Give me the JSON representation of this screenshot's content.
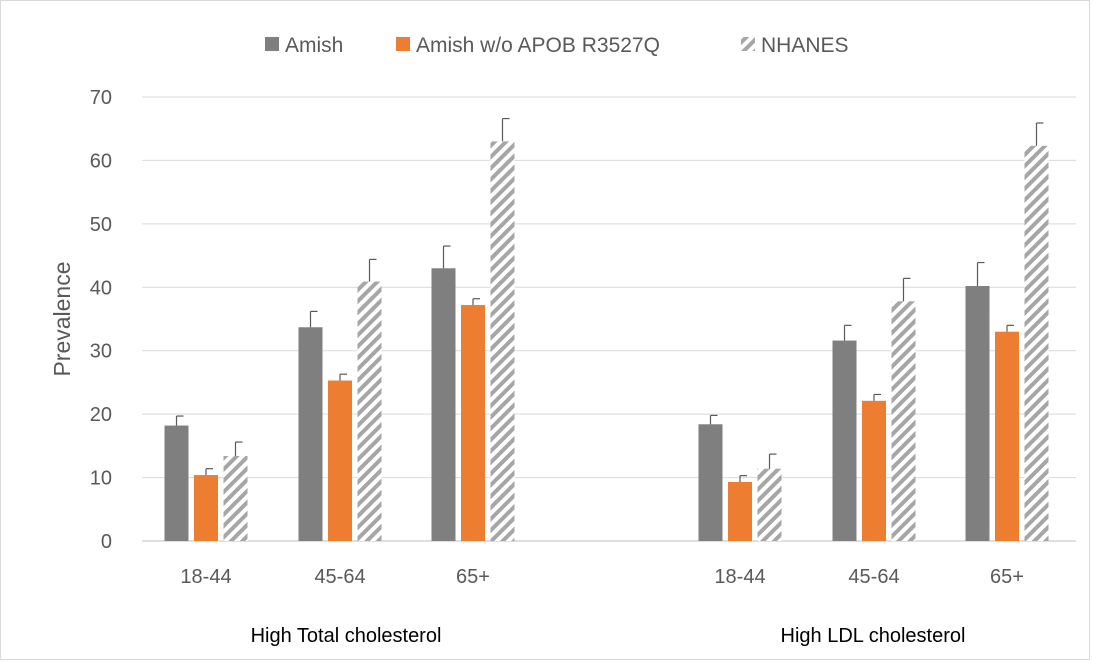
{
  "chart_data": {
    "type": "bar",
    "ylabel": "Prevalence",
    "ylim": [
      0,
      70
    ],
    "yticks": [
      0,
      10,
      20,
      30,
      40,
      50,
      60,
      70
    ],
    "grid": true,
    "legend_position": "top",
    "series": [
      {
        "name": "Amish",
        "color": "#7f7f7f",
        "pattern": "solid"
      },
      {
        "name": "Amish w/o APOB R3527Q",
        "color": "#ed7d31",
        "pattern": "solid"
      },
      {
        "name": "NHANES",
        "color": "#a6a6a6",
        "pattern": "diagonal-hatch"
      }
    ],
    "groups": [
      {
        "title": "High Total cholesterol",
        "categories": [
          "18-44",
          "45-64",
          "65+"
        ],
        "values": [
          [
            18.2,
            33.7,
            43.0
          ],
          [
            10.4,
            25.3,
            37.2
          ],
          [
            13.4,
            40.9,
            63.0
          ]
        ],
        "errors": [
          [
            1.5,
            2.5,
            3.5
          ],
          [
            1.0,
            1.0,
            1.0
          ],
          [
            2.2,
            3.5,
            3.6
          ]
        ]
      },
      {
        "title": "High LDL cholesterol",
        "categories": [
          "18-44",
          "45-64",
          "65+"
        ],
        "values": [
          [
            18.4,
            31.6,
            40.2
          ],
          [
            9.3,
            22.1,
            33.0
          ],
          [
            11.4,
            37.8,
            62.3
          ]
        ],
        "errors": [
          [
            1.4,
            2.4,
            3.7
          ],
          [
            1.0,
            1.0,
            1.0
          ],
          [
            2.3,
            3.6,
            3.6
          ]
        ]
      }
    ]
  }
}
